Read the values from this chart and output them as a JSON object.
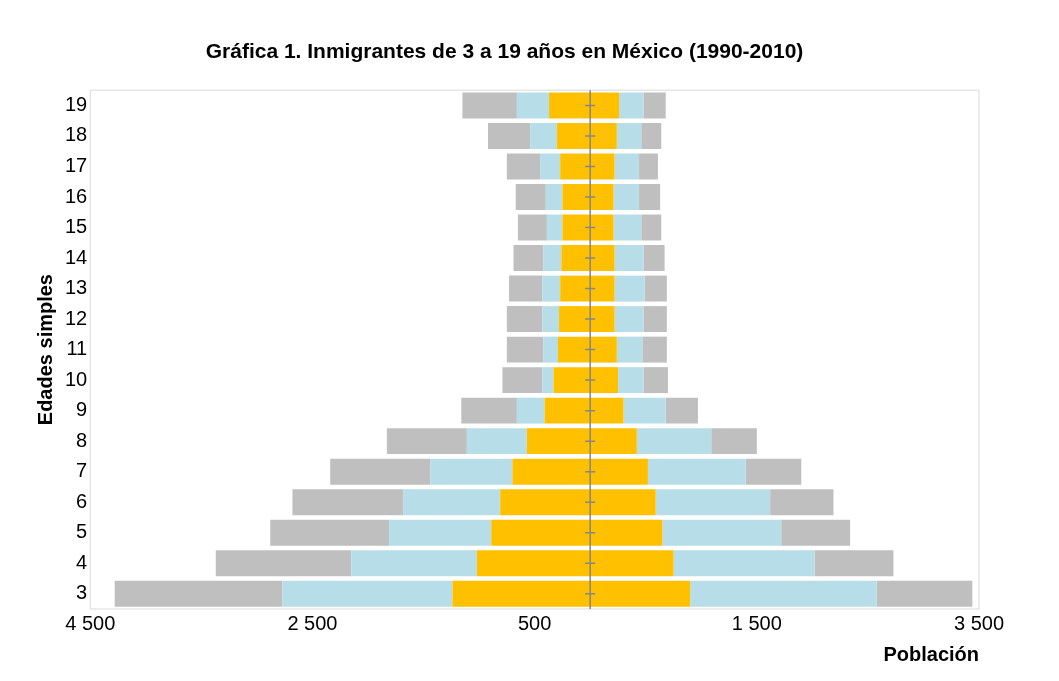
{
  "chart_data": {
    "type": "bar",
    "orientation": "horizontal",
    "stacked": true,
    "title": "Gráfica 1. Inmigrantes de 3 a 19 años en México (1990-2010)",
    "xlabel": "Población",
    "ylabel": "Edades simples",
    "categories": [
      "19",
      "18",
      "17",
      "16",
      "15",
      "14",
      "13",
      "12",
      "11",
      "10",
      "9",
      "8",
      "7",
      "6",
      "5",
      "4",
      "3"
    ],
    "series": [
      {
        "color": "#ffc000",
        "values": [
          -370,
          -300,
          -270,
          -250,
          -250,
          -260,
          -270,
          -280,
          -290,
          -330,
          -410,
          -570,
          -700,
          -810,
          -890,
          -1020,
          -1240
        ]
      },
      {
        "color": "#b7dee8",
        "values": [
          -290,
          -240,
          -180,
          -150,
          -140,
          -160,
          -160,
          -150,
          -130,
          -100,
          -250,
          -540,
          -740,
          -870,
          -920,
          -1130,
          -1530
        ]
      },
      {
        "color": "#bfbfbf",
        "values": [
          -490,
          -380,
          -300,
          -270,
          -260,
          -270,
          -300,
          -320,
          -330,
          -360,
          -500,
          -720,
          -900,
          -1000,
          -1070,
          -1220,
          -1510
        ]
      },
      {
        "color": "#ffc000",
        "values": [
          260,
          240,
          220,
          210,
          210,
          220,
          220,
          220,
          240,
          250,
          300,
          420,
          520,
          590,
          650,
          750,
          900
        ]
      },
      {
        "color": "#b7dee8",
        "values": [
          220,
          220,
          220,
          230,
          250,
          260,
          270,
          260,
          230,
          230,
          380,
          670,
          880,
          1030,
          1070,
          1270,
          1680
        ]
      },
      {
        "color": "#bfbfbf",
        "values": [
          200,
          180,
          170,
          190,
          180,
          190,
          200,
          210,
          220,
          220,
          290,
          410,
          500,
          570,
          620,
          710,
          860
        ]
      }
    ],
    "xlim": [
      -4500,
      3500
    ],
    "xticks": [
      {
        "value": -4500,
        "label": "4 500"
      },
      {
        "value": -2500,
        "label": "2 500"
      },
      {
        "value": -500,
        "label": "500"
      },
      {
        "value": 1500,
        "label": "1 500"
      },
      {
        "value": 3500,
        "label": "3 500"
      }
    ],
    "grid": false,
    "legend": false
  }
}
